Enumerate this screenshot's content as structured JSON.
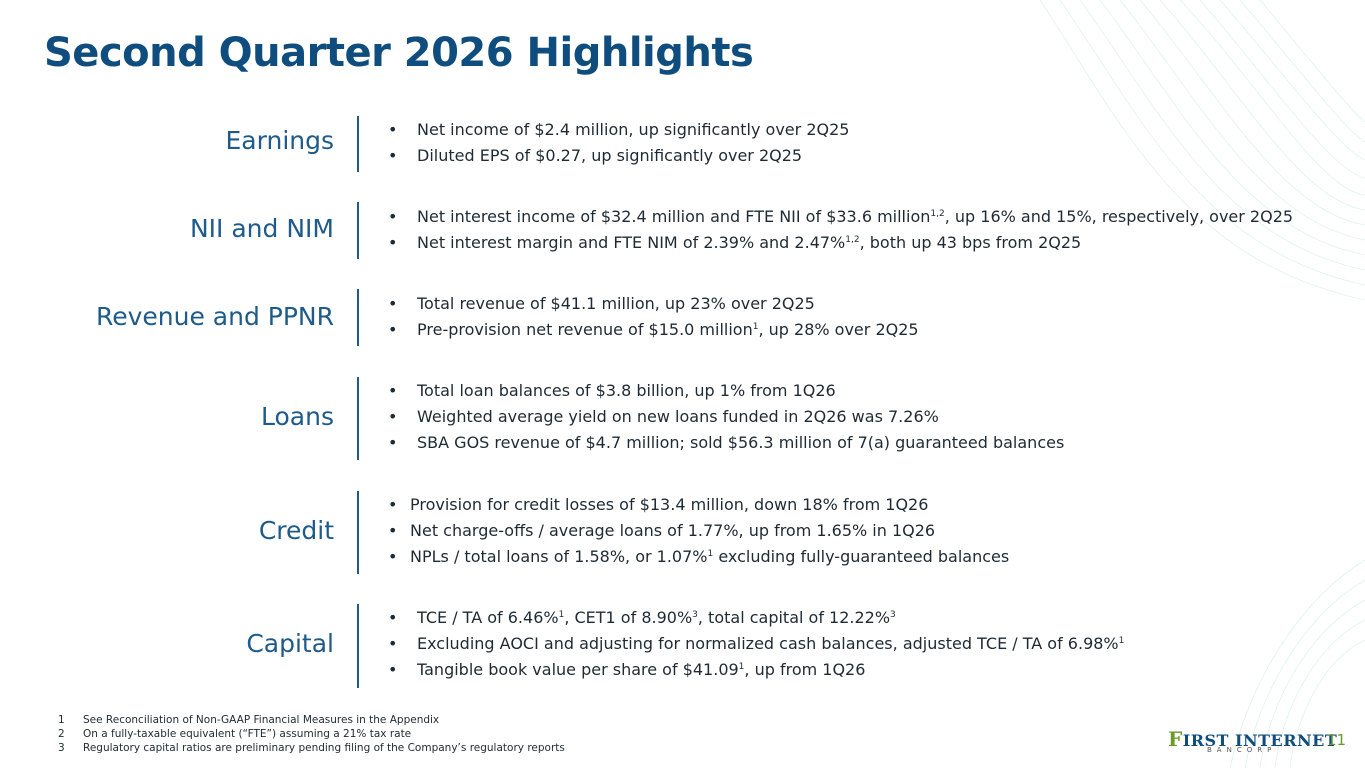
{
  "title": "Second Quarter 2026 Highlights",
  "sections": [
    {
      "label": "Earnings",
      "bullets": [
        {
          "pre": "Net income of $2.4 million, up significantly over 2Q25"
        },
        {
          "pre": "Diluted EPS of $0.27, up significantly over 2Q25"
        }
      ]
    },
    {
      "label": "NII and NIM",
      "bullets": [
        {
          "pre": "Net interest income of $32.4 million and FTE NII of $33.6 million",
          "sup": "1,2",
          "post": ", up 16% and 15%, respectively, over 2Q25"
        },
        {
          "pre": "Net interest margin and FTE NIM of 2.39% and 2.47%",
          "sup": "1,2",
          "post": ", both up 43 bps from 2Q25"
        }
      ]
    },
    {
      "label": "Revenue and PPNR",
      "bullets": [
        {
          "pre": "Total revenue of $41.1 million, up 23% over 2Q25"
        },
        {
          "pre": "Pre-provision net revenue of $15.0 million",
          "sup": "1",
          "post": ", up 28% over 2Q25"
        }
      ]
    },
    {
      "label": "Loans",
      "bullets": [
        {
          "pre": "Total loan balances of $3.8 billion, up 1% from 1Q26"
        },
        {
          "pre": "Weighted average yield on new loans funded in 2Q26 was 7.26%"
        },
        {
          "pre": "SBA GOS revenue of $4.7 million; sold $56.3 million of 7(a) guaranteed balances"
        }
      ]
    },
    {
      "label": "Credit",
      "bullets": [
        {
          "pre": "Provision for credit losses of $13.4 million, down 18% from 1Q26"
        },
        {
          "pre": "Net charge-offs / average loans of 1.77%, up from 1.65% in 1Q26"
        },
        {
          "pre": "NPLs / total loans of 1.58%, or 1.07%",
          "sup": "1",
          "post": " excluding fully-guaranteed balances"
        }
      ]
    },
    {
      "label": "Capital",
      "bullets": [
        {
          "pre": "TCE / TA of 6.46%",
          "sup": "1",
          "post": ", CET1 of 8.90%",
          "sup2": "3",
          "post2": ", total capital of 12.22%",
          "sup3": "3"
        },
        {
          "pre": "Excluding AOCI and adjusting for normalized cash balances, adjusted TCE / TA of 6.98%",
          "sup": "1"
        },
        {
          "pre": "Tangible book value per share of $41.09",
          "sup": "1",
          "post": ", up from 1Q26"
        }
      ]
    }
  ],
  "footnotes": [
    {
      "num": "1",
      "text": "See Reconciliation of Non-GAAP Financial Measures in the Appendix"
    },
    {
      "num": "2",
      "text": "On a fully-taxable equivalent (“FTE”) assuming a 21% tax rate"
    },
    {
      "num": "3",
      "text": "Regulatory capital ratios are preliminary pending filing of the Company’s regulatory reports"
    }
  ],
  "logo": {
    "first": "F",
    "main": "IRST INTERNET",
    "sub": "BANCORP"
  },
  "page_number": "11",
  "colors": {
    "title": "#0e4d7d",
    "label": "#1e5a8a",
    "accent": "#6a9a2a"
  }
}
